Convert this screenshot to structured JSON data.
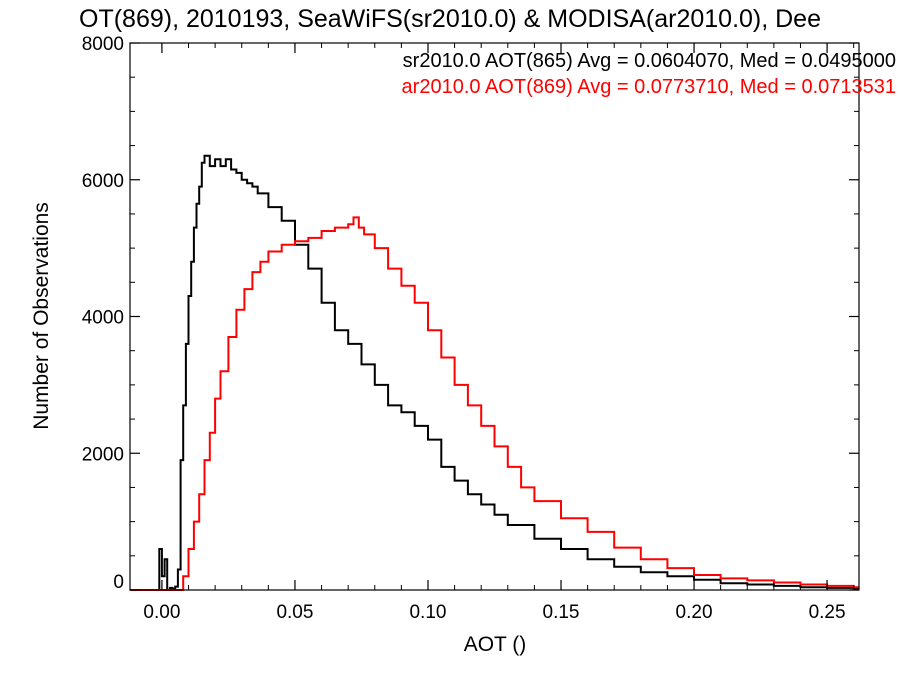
{
  "chart_data": {
    "type": "line",
    "title": "OT(869), 2010193, SeaWiFS(sr2010.0) & MODISA(ar2010.0), Dee",
    "xlabel": "AOT ()",
    "ylabel": "Number of Observations",
    "xlim": [
      -0.012,
      0.262
    ],
    "ylim": [
      0,
      8000
    ],
    "x_ticks": [
      0.0,
      0.05,
      0.1,
      0.15,
      0.2,
      0.25
    ],
    "x_tick_labels": [
      "0.00",
      "0.05",
      "0.10",
      "0.15",
      "0.20",
      "0.25"
    ],
    "y_ticks": [
      0,
      2000,
      4000,
      6000,
      8000
    ],
    "y_tick_labels": [
      "0",
      "2000",
      "4000",
      "6000",
      "8000"
    ],
    "grid": false,
    "legend_position": "top-right",
    "series": [
      {
        "name": "sr2010.0 AOT(865) Avg = 0.0604070, Med = 0.0495000",
        "color": "#000000",
        "style": "step",
        "x": [
          -0.012,
          -0.002,
          -0.001,
          0.0,
          0.001,
          0.002,
          0.003,
          0.004,
          0.005,
          0.006,
          0.007,
          0.008,
          0.009,
          0.01,
          0.011,
          0.012,
          0.013,
          0.014,
          0.015,
          0.016,
          0.018,
          0.02,
          0.022,
          0.024,
          0.026,
          0.028,
          0.03,
          0.032,
          0.034,
          0.036,
          0.04,
          0.045,
          0.05,
          0.055,
          0.06,
          0.065,
          0.07,
          0.075,
          0.08,
          0.085,
          0.09,
          0.095,
          0.1,
          0.105,
          0.11,
          0.115,
          0.12,
          0.125,
          0.13,
          0.14,
          0.15,
          0.16,
          0.17,
          0.18,
          0.19,
          0.2,
          0.21,
          0.22,
          0.23,
          0.24,
          0.25,
          0.26
        ],
        "y": [
          0,
          0,
          600,
          200,
          450,
          0,
          30,
          10,
          50,
          300,
          1900,
          2700,
          3600,
          4300,
          4800,
          5300,
          5650,
          5900,
          6250,
          6350,
          6200,
          6300,
          6200,
          6300,
          6150,
          6100,
          6000,
          5950,
          5900,
          5800,
          5600,
          5400,
          5050,
          4700,
          4200,
          3800,
          3600,
          3300,
          3000,
          2700,
          2600,
          2400,
          2200,
          1800,
          1600,
          1400,
          1250,
          1100,
          950,
          750,
          600,
          450,
          340,
          260,
          200,
          150,
          100,
          80,
          60,
          40,
          30,
          20
        ]
      },
      {
        "name": "ar2010.0 AOT(869) Avg = 0.0773710, Med = 0.0713531",
        "color": "#ff0000",
        "style": "step",
        "x": [
          -0.012,
          0.006,
          0.008,
          0.01,
          0.012,
          0.014,
          0.016,
          0.018,
          0.02,
          0.022,
          0.025,
          0.028,
          0.031,
          0.034,
          0.037,
          0.04,
          0.045,
          0.05,
          0.055,
          0.06,
          0.065,
          0.07,
          0.072,
          0.074,
          0.076,
          0.08,
          0.085,
          0.09,
          0.095,
          0.1,
          0.105,
          0.11,
          0.115,
          0.12,
          0.125,
          0.13,
          0.135,
          0.14,
          0.15,
          0.16,
          0.17,
          0.18,
          0.19,
          0.2,
          0.21,
          0.22,
          0.23,
          0.24,
          0.25,
          0.26
        ],
        "y": [
          0,
          0,
          200,
          600,
          1000,
          1400,
          1900,
          2300,
          2800,
          3200,
          3700,
          4100,
          4400,
          4650,
          4800,
          4950,
          5050,
          5100,
          5150,
          5250,
          5300,
          5350,
          5450,
          5300,
          5200,
          5000,
          4700,
          4450,
          4200,
          3800,
          3400,
          3000,
          2700,
          2400,
          2100,
          1800,
          1500,
          1300,
          1050,
          850,
          620,
          450,
          320,
          220,
          170,
          140,
          110,
          80,
          60,
          40
        ]
      }
    ]
  }
}
